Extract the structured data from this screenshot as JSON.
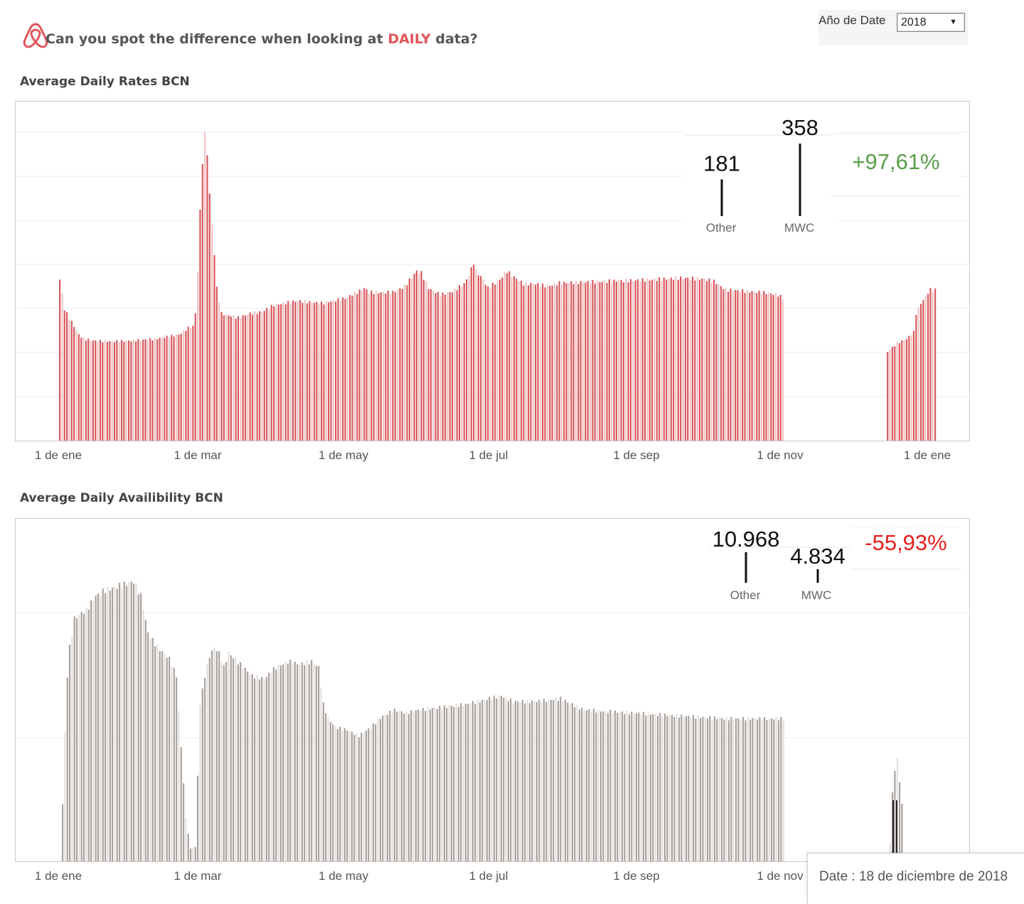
{
  "header": {
    "title_main": "Can you spot the difference  when looking at ",
    "title_highlight": "DAILY",
    "title_end": " data?",
    "logo_icon": "airbnb-logo-icon",
    "highlight_color": "#e0565b"
  },
  "filter": {
    "label": "Año de Date",
    "value": "2018",
    "caret": "▼"
  },
  "tooltip": {
    "text": "Date : 18 de diciembre de 2018"
  },
  "chart_data": [
    {
      "id": "rates",
      "type": "bar",
      "title": "Average Daily Rates BCN",
      "color": "#d9575c",
      "highlight_color": "#f2c3c4",
      "grid": true,
      "x_ticks": [
        "1 de ene",
        "1 de mar",
        "1 de may",
        "1 de jul",
        "1 de sep",
        "1 de nov",
        "1 de ene"
      ],
      "ylim": [
        0,
        400
      ],
      "segments": [
        {
          "start_day": 0,
          "end_day": 304,
          "points": [
            [
              0,
              190
            ],
            [
              2,
              155
            ],
            [
              5,
              140
            ],
            [
              8,
              125
            ],
            [
              10,
              120
            ],
            [
              14,
              118
            ],
            [
              22,
              117
            ],
            [
              30,
              118
            ],
            [
              40,
              120
            ],
            [
              50,
              125
            ],
            [
              54,
              133
            ],
            [
              56,
              135
            ],
            [
              57,
              150
            ],
            [
              58,
              200
            ],
            [
              59,
              270
            ],
            [
              60,
              330
            ],
            [
              61,
              360
            ],
            [
              62,
              340
            ],
            [
              63,
              290
            ],
            [
              65,
              220
            ],
            [
              66,
              180
            ],
            [
              68,
              150
            ],
            [
              75,
              145
            ],
            [
              80,
              150
            ],
            [
              85,
              152
            ],
            [
              90,
              160
            ],
            [
              100,
              165
            ],
            [
              110,
              162
            ],
            [
              120,
              168
            ],
            [
              125,
              175
            ],
            [
              128,
              180
            ],
            [
              130,
              175
            ],
            [
              140,
              175
            ],
            [
              145,
              182
            ],
            [
              150,
              200
            ],
            [
              152,
              198
            ],
            [
              155,
              180
            ],
            [
              160,
              172
            ],
            [
              165,
              176
            ],
            [
              170,
              185
            ],
            [
              172,
              195
            ],
            [
              174,
              210
            ],
            [
              175,
              200
            ],
            [
              178,
              190
            ],
            [
              180,
              180
            ],
            [
              185,
              190
            ],
            [
              188,
              200
            ],
            [
              190,
              195
            ],
            [
              195,
              185
            ],
            [
              200,
              185
            ],
            [
              205,
              182
            ],
            [
              210,
              186
            ],
            [
              230,
              188
            ],
            [
              250,
              190
            ],
            [
              260,
              192
            ],
            [
              270,
              191
            ],
            [
              275,
              188
            ],
            [
              280,
              178
            ],
            [
              290,
              176
            ],
            [
              295,
              175
            ],
            [
              300,
              173
            ],
            [
              302,
              172
            ],
            [
              304,
              168
            ]
          ]
        },
        {
          "start_day": 348,
          "end_day": 368,
          "points": [
            [
              348,
              105
            ],
            [
              350,
              110
            ],
            [
              352,
              115
            ],
            [
              356,
              120
            ],
            [
              359,
              128
            ],
            [
              360,
              150
            ],
            [
              362,
              162
            ],
            [
              364,
              170
            ],
            [
              365,
              175
            ],
            [
              366,
              178
            ],
            [
              367,
              178
            ],
            [
              368,
              178
            ]
          ]
        }
      ],
      "kpi": {
        "labels": [
          "Other",
          "MWC"
        ],
        "values": [
          181,
          358
        ],
        "value_text": [
          "181",
          "358"
        ],
        "change": "+97,61%",
        "change_color": "#5a9e4a"
      }
    },
    {
      "id": "availability",
      "type": "bar",
      "title": "Average Daily Availibility BCN",
      "color": "#a8a09c",
      "highlight_color": "#e4dfdc",
      "grid": true,
      "x_ticks": [
        "1 de ene",
        "1 de mar",
        "1 de may",
        "1 de jul",
        "1 de sep",
        "1 de nov"
      ],
      "ylim": [
        0,
        12000
      ],
      "segments": [
        {
          "start_day": 0,
          "end_day": 304,
          "points": [
            [
              0,
              2000
            ],
            [
              1,
              4500
            ],
            [
              2,
              6500
            ],
            [
              3,
              7500
            ],
            [
              5,
              8500
            ],
            [
              8,
              8700
            ],
            [
              10,
              8800
            ],
            [
              14,
              9300
            ],
            [
              18,
              9500
            ],
            [
              22,
              9600
            ],
            [
              26,
              9700
            ],
            [
              30,
              9800
            ],
            [
              33,
              9300
            ],
            [
              36,
              8000
            ],
            [
              40,
              7500
            ],
            [
              45,
              7100
            ],
            [
              48,
              6500
            ],
            [
              50,
              4000
            ],
            [
              52,
              1500
            ],
            [
              54,
              450
            ],
            [
              56,
              500
            ],
            [
              58,
              5500
            ],
            [
              60,
              6500
            ],
            [
              62,
              7200
            ],
            [
              64,
              7500
            ],
            [
              66,
              7300
            ],
            [
              68,
              6800
            ],
            [
              70,
              7300
            ],
            [
              75,
              6900
            ],
            [
              80,
              6500
            ],
            [
              85,
              6400
            ],
            [
              90,
              6800
            ],
            [
              95,
              7000
            ],
            [
              100,
              6900
            ],
            [
              105,
              7000
            ],
            [
              108,
              6800
            ],
            [
              110,
              5500
            ],
            [
              112,
              5000
            ],
            [
              115,
              4700
            ],
            [
              120,
              4600
            ],
            [
              125,
              4400
            ],
            [
              130,
              4700
            ],
            [
              135,
              5100
            ],
            [
              140,
              5300
            ],
            [
              145,
              5200
            ],
            [
              150,
              5300
            ],
            [
              160,
              5400
            ],
            [
              170,
              5500
            ],
            [
              180,
              5700
            ],
            [
              185,
              5800
            ],
            [
              190,
              5600
            ],
            [
              200,
              5600
            ],
            [
              210,
              5700
            ],
            [
              220,
              5300
            ],
            [
              240,
              5200
            ],
            [
              260,
              5100
            ],
            [
              280,
              5000
            ],
            [
              300,
              5000
            ],
            [
              304,
              5000
            ]
          ]
        },
        {
          "start_day": 349,
          "end_day": 354,
          "points": [
            [
              349,
              600
            ],
            [
              350,
              2400
            ],
            [
              351,
              3200
            ],
            [
              352,
              3600
            ],
            [
              353,
              2800
            ],
            [
              354,
              2000
            ]
          ]
        }
      ],
      "kpi": {
        "labels": [
          "Other",
          "MWC"
        ],
        "values": [
          10968,
          4834
        ],
        "value_text": [
          "10.968",
          "4.834"
        ],
        "change": "-55,93%",
        "change_color": "#e4201e"
      }
    }
  ]
}
